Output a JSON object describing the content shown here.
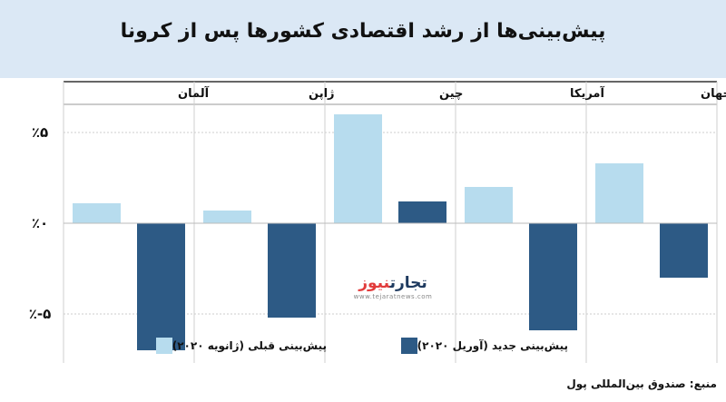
{
  "title": "پیش‌بینی‌ها از رشد اقتصادی کشورها پس از کرونا",
  "source": "منبع: صندوق بین‌المللی پول",
  "watermark": {
    "logo_primary": "تجارت",
    "logo_accent": "نیوز",
    "url": "www.tejaratnews.com"
  },
  "chart_data": {
    "type": "bar",
    "categories": [
      "جهان",
      "آمریکا",
      "چین",
      "ژاپن",
      "آلمان"
    ],
    "series": [
      {
        "name": "پیش‌بینی قبلی (ژانویه ۲۰۲۰)",
        "values": [
          3.3,
          2.0,
          6.0,
          0.7,
          1.1
        ],
        "color": "#b7dcee"
      },
      {
        "name": "پیش‌بینی جدید (آوریل ۲۰۲۰)",
        "values": [
          -3.0,
          -5.9,
          1.2,
          -5.2,
          -7.0
        ],
        "color": "#2d5a85"
      }
    ],
    "y_ticks": [
      {
        "value": 5,
        "label": "٪۵"
      },
      {
        "value": 0,
        "label": "٪۰"
      },
      {
        "value": -5,
        "label": "٪-۵"
      }
    ],
    "ylim": [
      -7.5,
      6.5
    ],
    "xlabel": "",
    "ylabel": "",
    "grid": true,
    "legend_position": "bottom"
  }
}
